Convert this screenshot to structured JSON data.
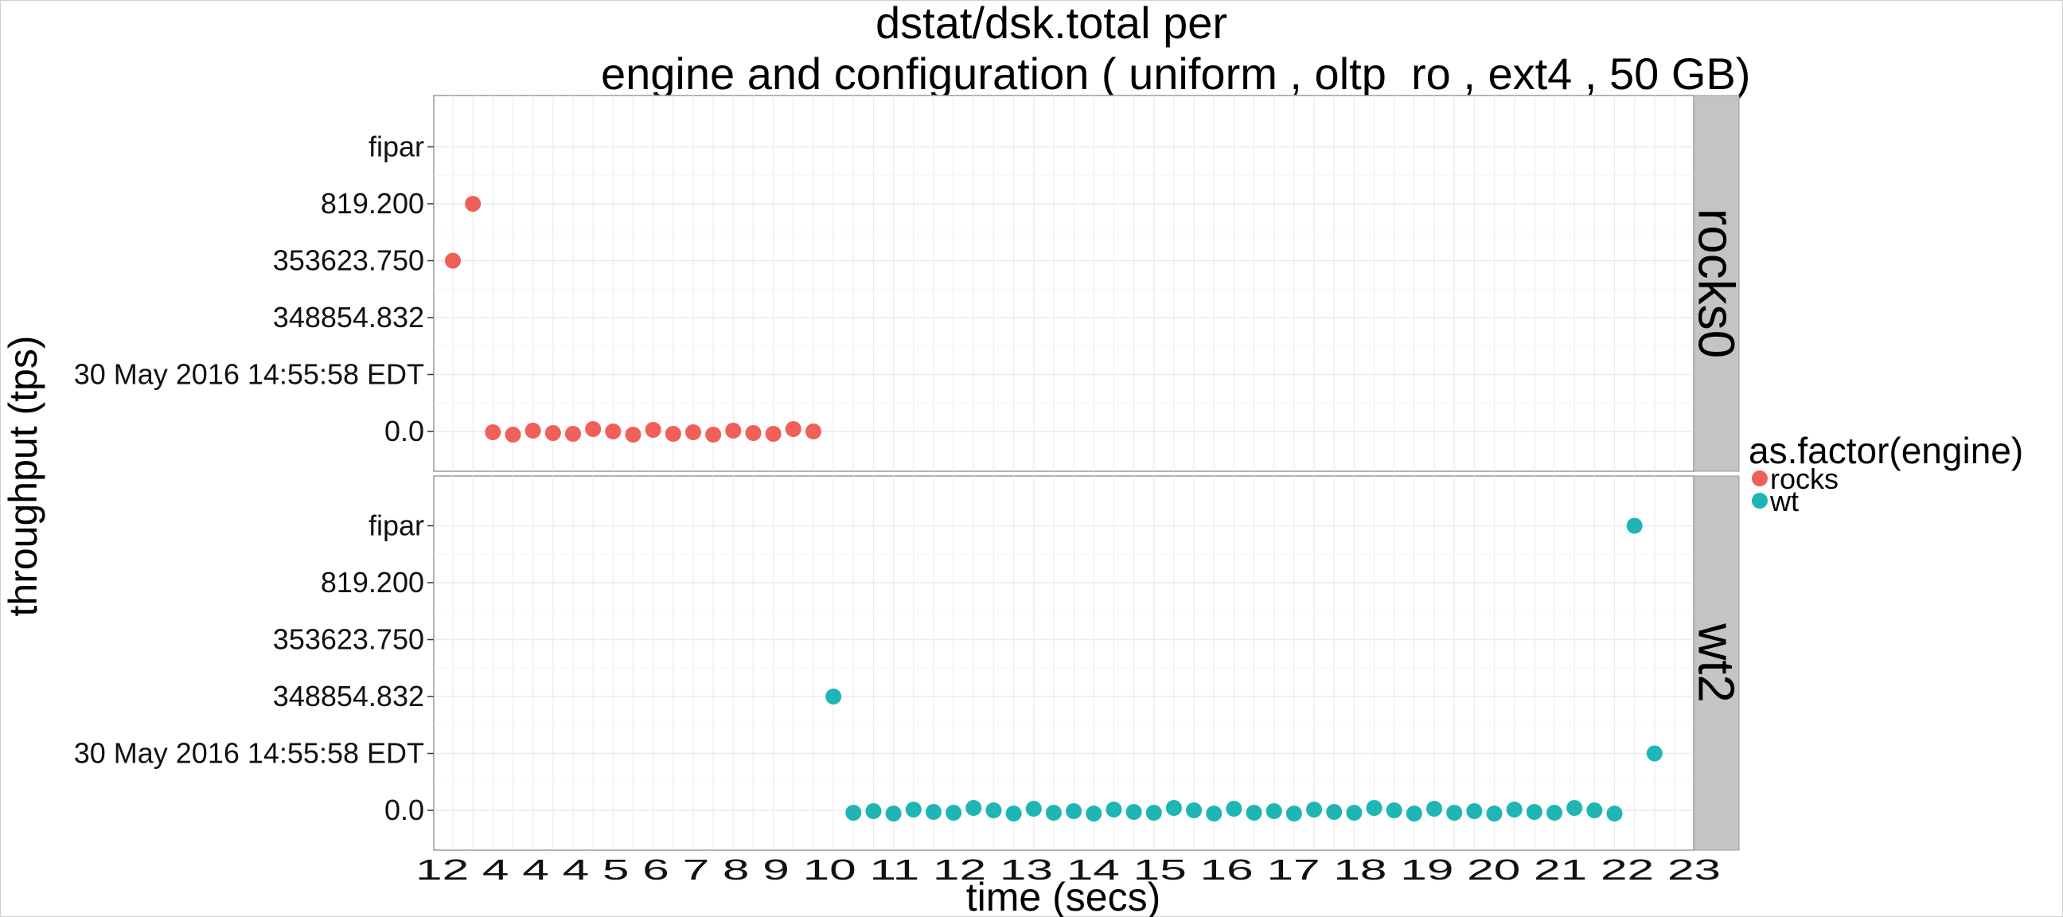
{
  "chart_data": {
    "type": "scatter",
    "title_line1": "dstat/dsk.total per",
    "title_line2": "engine and configuration ( uniform , oltp_ro , ext4 ,  50 GB)",
    "xlabel": "time (secs)",
    "ylabel": "throughput (tps)",
    "x_tick_text": "12 4 4 4 5 6 7 8 9 10 11 12 13 14 15 16 17 18 19 20 21 22 23",
    "x_tick_first": "12",
    "x_tick_last": "23",
    "y_categories": [
      "0.0",
      "30 May 2016 14:55:58 EDT",
      "348854.832",
      "353623.750",
      "819.200",
      "fipar"
    ],
    "x_range": [
      1,
      62
    ],
    "legend": {
      "title": "as.factor(engine)",
      "items": [
        {
          "label": "rocks",
          "color": "#F0605A"
        },
        {
          "label": "wt",
          "color": "#1FB5B5"
        }
      ]
    },
    "panels": [
      {
        "strip": "rocks0",
        "engine": "rocks",
        "color": "#F0605A",
        "points": [
          {
            "x": 1,
            "y": "353623.750"
          },
          {
            "x": 2,
            "y": "819.200"
          },
          {
            "x": 3,
            "y": "0.0"
          },
          {
            "x": 4,
            "y": "0.0"
          },
          {
            "x": 5,
            "y": "0.0"
          },
          {
            "x": 6,
            "y": "0.0"
          },
          {
            "x": 7,
            "y": "0.0"
          },
          {
            "x": 8,
            "y": "0.0"
          },
          {
            "x": 9,
            "y": "0.0"
          },
          {
            "x": 10,
            "y": "0.0"
          },
          {
            "x": 11,
            "y": "0.0"
          },
          {
            "x": 12,
            "y": "0.0"
          },
          {
            "x": 13,
            "y": "0.0"
          },
          {
            "x": 14,
            "y": "0.0"
          },
          {
            "x": 15,
            "y": "0.0"
          },
          {
            "x": 16,
            "y": "0.0"
          },
          {
            "x": 17,
            "y": "0.0"
          },
          {
            "x": 18,
            "y": "0.0"
          },
          {
            "x": 19,
            "y": "0.0"
          }
        ]
      },
      {
        "strip": "wt2",
        "engine": "wt",
        "color": "#1FB5B5",
        "points": [
          {
            "x": 20,
            "y": "348854.832"
          },
          {
            "x": 21,
            "y": "0.0"
          },
          {
            "x": 22,
            "y": "0.0"
          },
          {
            "x": 23,
            "y": "0.0"
          },
          {
            "x": 24,
            "y": "0.0"
          },
          {
            "x": 25,
            "y": "0.0"
          },
          {
            "x": 26,
            "y": "0.0"
          },
          {
            "x": 27,
            "y": "0.0"
          },
          {
            "x": 28,
            "y": "0.0"
          },
          {
            "x": 29,
            "y": "0.0"
          },
          {
            "x": 30,
            "y": "0.0"
          },
          {
            "x": 31,
            "y": "0.0"
          },
          {
            "x": 32,
            "y": "0.0"
          },
          {
            "x": 33,
            "y": "0.0"
          },
          {
            "x": 34,
            "y": "0.0"
          },
          {
            "x": 35,
            "y": "0.0"
          },
          {
            "x": 36,
            "y": "0.0"
          },
          {
            "x": 37,
            "y": "0.0"
          },
          {
            "x": 38,
            "y": "0.0"
          },
          {
            "x": 39,
            "y": "0.0"
          },
          {
            "x": 40,
            "y": "0.0"
          },
          {
            "x": 41,
            "y": "0.0"
          },
          {
            "x": 42,
            "y": "0.0"
          },
          {
            "x": 43,
            "y": "0.0"
          },
          {
            "x": 44,
            "y": "0.0"
          },
          {
            "x": 45,
            "y": "0.0"
          },
          {
            "x": 46,
            "y": "0.0"
          },
          {
            "x": 47,
            "y": "0.0"
          },
          {
            "x": 48,
            "y": "0.0"
          },
          {
            "x": 49,
            "y": "0.0"
          },
          {
            "x": 50,
            "y": "0.0"
          },
          {
            "x": 51,
            "y": "0.0"
          },
          {
            "x": 52,
            "y": "0.0"
          },
          {
            "x": 53,
            "y": "0.0"
          },
          {
            "x": 54,
            "y": "0.0"
          },
          {
            "x": 55,
            "y": "0.0"
          },
          {
            "x": 56,
            "y": "0.0"
          },
          {
            "x": 57,
            "y": "0.0"
          },
          {
            "x": 58,
            "y": "0.0"
          },
          {
            "x": 59,
            "y": "0.0"
          },
          {
            "x": 60,
            "y": "fipar"
          },
          {
            "x": 61,
            "y": "30 May 2016 14:55:58 EDT"
          }
        ]
      }
    ],
    "grid": true
  }
}
